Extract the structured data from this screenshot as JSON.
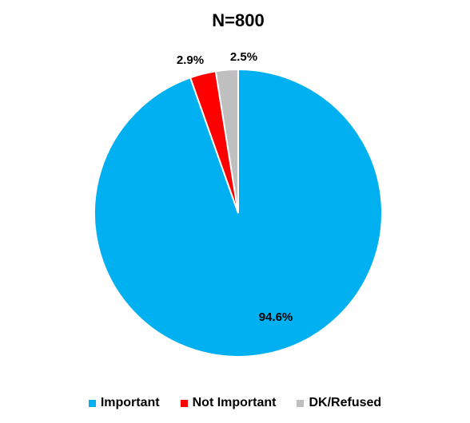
{
  "chart_data": {
    "type": "pie",
    "title": "N=800",
    "categories": [
      "Important",
      "Not Important",
      "DK/Refused"
    ],
    "values": [
      94.6,
      2.9,
      2.5
    ],
    "data_labels": [
      "94.6%",
      "2.9%",
      "2.5%"
    ],
    "colors": [
      "#00b0f0",
      "#ff0000",
      "#bfbfbf"
    ],
    "legend_position": "bottom"
  }
}
